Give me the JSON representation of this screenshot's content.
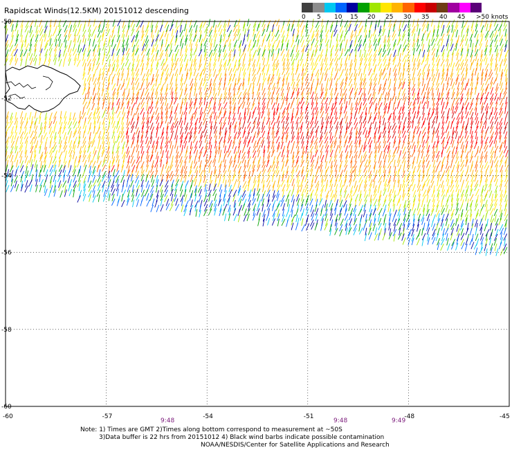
{
  "title": "Rapidscat Winds(12.5KM) 20151012 descending",
  "colorbar": {
    "colors": [
      "#404040",
      "#8c8c8c",
      "#00c8f0",
      "#0064ff",
      "#0000a0",
      "#00a000",
      "#a0e600",
      "#ffe600",
      "#ffb400",
      "#ff6400",
      "#ff0000",
      "#c80000",
      "#6e3c14",
      "#a000a0",
      "#ff00ff",
      "#5a0078"
    ],
    "labels": [
      "0",
      "5",
      "10",
      "15",
      "20",
      "25",
      "30",
      "35",
      "40",
      "45",
      ">50 knots"
    ]
  },
  "map": {
    "lon_range": [
      -60,
      -45
    ],
    "lat_range": [
      -60,
      -50
    ],
    "lon_ticks": [
      "-60",
      "-57",
      "-54",
      "-51",
      "-48",
      "-45"
    ],
    "lat_ticks": [
      "-50",
      "-52",
      "-54",
      "-56",
      "-58",
      "-60"
    ],
    "time_labels": [
      "9:48",
      "9:48",
      "9:49"
    ],
    "land": "Falkland Islands"
  },
  "notes": {
    "line1": "Note: 1) Times are GMT 2)Times along bottom correspond to measurement at ~50S",
    "line2": "3)Data buffer is 22 hrs from 20151012 4) Black wind barbs indicate possible contamination",
    "line3": "NOAA/NESDIS/Center for Satellite Applications and Research"
  }
}
